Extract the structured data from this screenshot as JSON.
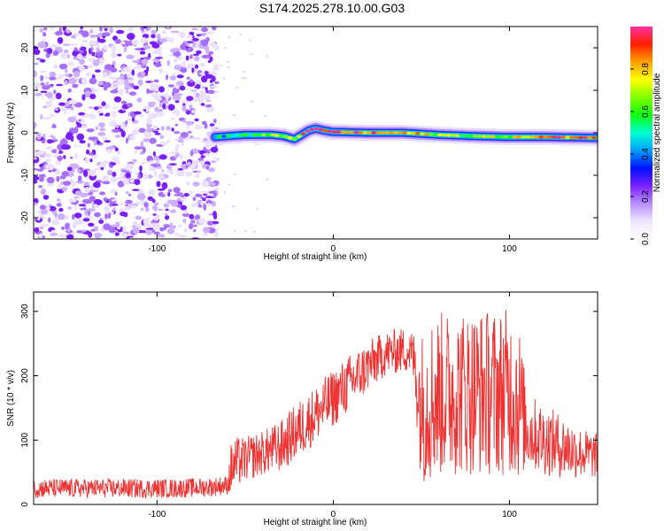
{
  "title": "S174.2025.278.10.00.G03",
  "colors": {
    "snr_line": "#ee3333",
    "noise": "#8a3df0",
    "colormap": [
      "#ffffff",
      "#f0e6ff",
      "#b890ff",
      "#7a20ff",
      "#0010ff",
      "#00a0ff",
      "#00ffd0",
      "#10ff10",
      "#80ff00",
      "#ffff00",
      "#ffa000",
      "#ff2000",
      "#ff30a0"
    ]
  },
  "chart_data": [
    {
      "type": "heatmap",
      "title": "S174.2025.278.10.00.G03",
      "xlabel": "Height of straight line (km)",
      "ylabel": "Frequency (Hz)",
      "xlim": [
        -170,
        150
      ],
      "ylim": [
        -25,
        25
      ],
      "xticks": [
        -100,
        0,
        100
      ],
      "yticks": [
        -20,
        -10,
        0,
        10,
        20
      ],
      "colorbar": {
        "label": "Normalized spectral amplitude",
        "range": [
          0,
          1
        ],
        "ticks": [
          0.0,
          0.2,
          0.4,
          0.6,
          0.8
        ],
        "tick_labels": [
          "0.0",
          "0.2",
          "0.4",
          "0.6",
          "0.8"
        ]
      },
      "noise_region_x": [
        -170,
        -67
      ],
      "signal_ridge": {
        "x": [
          -67,
          -50,
          -35,
          -28,
          -22,
          -18,
          -14,
          -10,
          -5,
          0,
          20,
          40,
          60,
          80,
          100,
          120,
          150
        ],
        "y": [
          -1.0,
          -0.5,
          -0.5,
          -0.8,
          -1.5,
          -0.5,
          0.5,
          1.0,
          0.5,
          0.2,
          0.0,
          0.0,
          -0.5,
          -0.8,
          -1.0,
          -1.0,
          -1.2
        ],
        "amplitude": [
          0.45,
          0.55,
          0.6,
          0.7,
          0.75,
          0.85,
          0.95,
          1.0,
          0.95,
          0.9,
          0.85,
          0.8,
          0.7,
          0.65,
          0.7,
          0.85,
          0.95
        ]
      }
    },
    {
      "type": "line",
      "xlabel": "Height of straight line (km)",
      "ylabel": "SNR (10 * v/v)",
      "xlim": [
        -170,
        150
      ],
      "ylim": [
        0,
        330
      ],
      "xticks": [
        -100,
        0,
        100
      ],
      "yticks": [
        0,
        100,
        200,
        300
      ],
      "series": [
        {
          "x": [
            -170,
            -150,
            -130,
            -110,
            -90,
            -70,
            -60,
            -58,
            -55,
            -50,
            -45,
            -40,
            -30,
            -20,
            -10,
            0,
            10,
            20,
            30,
            40,
            45,
            50,
            55,
            60,
            70,
            80,
            90,
            100,
            105,
            110,
            120,
            130,
            140,
            150
          ],
          "y_center": [
            25,
            25,
            25,
            25,
            25,
            27,
            30,
            55,
            65,
            70,
            75,
            80,
            90,
            115,
            140,
            165,
            190,
            215,
            235,
            240,
            235,
            150,
            165,
            170,
            175,
            175,
            175,
            175,
            165,
            115,
            100,
            90,
            80,
            75
          ],
          "y_spread": [
            15,
            15,
            15,
            15,
            15,
            15,
            15,
            40,
            40,
            35,
            35,
            35,
            40,
            45,
            45,
            45,
            45,
            40,
            35,
            35,
            35,
            120,
            130,
            130,
            130,
            130,
            130,
            130,
            130,
            60,
            55,
            50,
            40,
            35
          ]
        }
      ]
    }
  ]
}
